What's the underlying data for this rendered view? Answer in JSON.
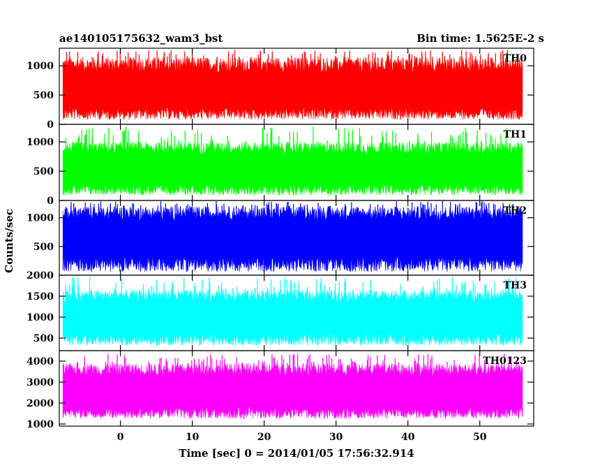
{
  "header": {
    "title": "ae140105175632_wam3_bst",
    "bin_time": "Bin time: 1.5625E-2 s"
  },
  "chart_data": {
    "type": "line",
    "title": "ae140105175632_wam3_bst",
    "subtitle": "Bin time: 1.5625E-2 s",
    "xlabel": "Time [sec] 0 = 2014/01/05 17:56:32.914",
    "ylabel": "Counts/sec",
    "xlim": [
      -8.5,
      57.5
    ],
    "x_range": [
      -8,
      56
    ],
    "x_ticks": [
      "0",
      "10",
      "20",
      "30",
      "40",
      "50"
    ],
    "grid": false,
    "panels": [
      {
        "name": "TH0",
        "color": "#ff0000",
        "ylim": [
          0,
          1300
        ],
        "yticks": [
          "0",
          "500",
          "1000"
        ],
        "mean": 550,
        "low": 80,
        "high": 1150,
        "peak": 1270
      },
      {
        "name": "TH1",
        "color": "#00ff00",
        "ylim": [
          0,
          1300
        ],
        "yticks": [
          "0",
          "500",
          "1000"
        ],
        "mean": 520,
        "low": 90,
        "high": 1000,
        "peak": 1260
      },
      {
        "name": "TH2",
        "color": "#0000ff",
        "ylim": [
          0,
          1300
        ],
        "yticks": [
          "500",
          "1000"
        ],
        "mean": 650,
        "low": 60,
        "high": 1200,
        "peak": 1290
      },
      {
        "name": "TH3",
        "color": "#00ffff",
        "ylim": [
          200,
          2000
        ],
        "yticks": [
          "500",
          "1000",
          "1500",
          "2000"
        ],
        "mean": 1000,
        "low": 320,
        "high": 1650,
        "peak": 1970
      },
      {
        "name": "TH0123",
        "color": "#ff00ff",
        "ylim": [
          900,
          4500
        ],
        "yticks": [
          "1000",
          "2000",
          "3000",
          "4000"
        ],
        "mean": 2500,
        "low": 1250,
        "high": 3900,
        "peak": 4350
      }
    ]
  }
}
